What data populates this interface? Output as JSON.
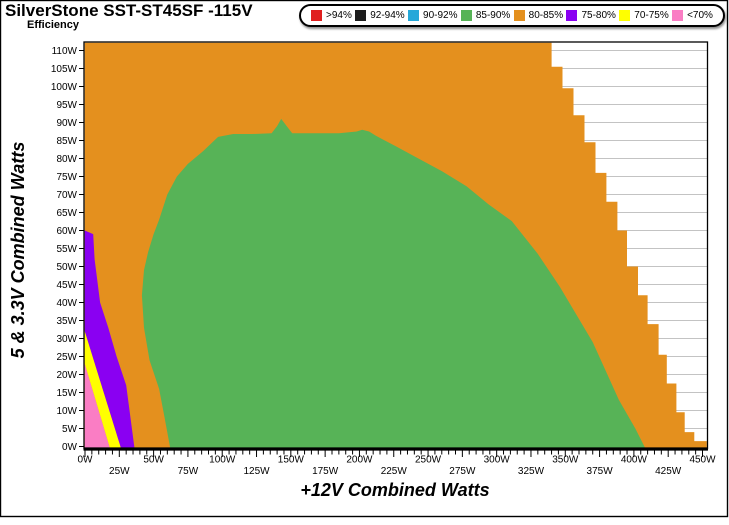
{
  "chart_data": {
    "type": "filled_contour",
    "title": "SilverStone SST-ST45SF -115V",
    "legend_title": "Efficiency",
    "xlabel": "+12V Combined Watts",
    "ylabel": "5 & 3.3V Combined Watts",
    "xlim": [
      0,
      450
    ],
    "ylim": [
      0,
      110
    ],
    "x_major_tick_step": 25,
    "x_minor_tick_step": 5,
    "y_tick_step": 5,
    "x_tick_labels": [
      "0W",
      "25W",
      "50W",
      "75W",
      "100W",
      "125W",
      "150W",
      "175W",
      "200W",
      "225W",
      "250W",
      "275W",
      "300W",
      "325W",
      "350W",
      "375W",
      "400W",
      "425W",
      "450W"
    ],
    "y_tick_labels": [
      "0W",
      "5W",
      "10W",
      "15W",
      "20W",
      "25W",
      "30W",
      "35W",
      "40W",
      "45W",
      "50W",
      "55W",
      "60W",
      "65W",
      "70W",
      "75W",
      "80W",
      "85W",
      "90W",
      "95W",
      "100W",
      "105W",
      "110W"
    ],
    "grid": {
      "horizontal_step": 5,
      "color": "#c3c3c3"
    },
    "legend": {
      "position": "top-right",
      "items": [
        {
          "label": ">94%",
          "color": "#e01f1f"
        },
        {
          "label": "92-94%",
          "color": "#1c1c1c"
        },
        {
          "label": "90-92%",
          "color": "#25a8d9"
        },
        {
          "label": "85-90%",
          "color": "#57b357"
        },
        {
          "label": "80-85%",
          "color": "#e4901e"
        },
        {
          "label": "75-80%",
          "color": "#8a00f2"
        },
        {
          "label": "70-75%",
          "color": "#ffff00"
        },
        {
          "label": "<70%",
          "color": "#fa7dc4"
        }
      ]
    },
    "regions": [
      {
        "band": "80-85%",
        "color": "#e4901e",
        "points": [
          [
            0,
            0
          ],
          [
            0,
            110
          ],
          [
            340,
            110
          ],
          [
            340,
            105.5
          ],
          [
            348,
            105.5
          ],
          [
            348,
            99.5
          ],
          [
            356,
            99.5
          ],
          [
            356,
            92
          ],
          [
            364,
            92
          ],
          [
            364,
            84.5
          ],
          [
            372,
            84.5
          ],
          [
            372,
            76
          ],
          [
            380,
            76
          ],
          [
            380,
            68
          ],
          [
            388,
            68
          ],
          [
            388,
            60
          ],
          [
            395,
            60
          ],
          [
            395,
            50
          ],
          [
            403,
            50
          ],
          [
            403,
            42
          ],
          [
            410,
            42
          ],
          [
            410,
            34
          ],
          [
            418,
            34
          ],
          [
            418,
            25.5
          ],
          [
            424,
            25.5
          ],
          [
            424,
            17.5
          ],
          [
            431,
            17.5
          ],
          [
            431,
            9.5
          ],
          [
            437,
            9.5
          ],
          [
            437,
            4
          ],
          [
            444,
            4
          ],
          [
            444,
            1.5
          ],
          [
            450,
            1.5
          ],
          [
            450,
            0
          ]
        ]
      },
      {
        "band": "75-80%",
        "color": "#8a00f2",
        "points": [
          [
            0,
            32
          ],
          [
            0,
            60
          ],
          [
            6,
            59
          ],
          [
            7,
            52
          ],
          [
            11,
            40
          ],
          [
            17,
            33
          ],
          [
            23,
            25
          ],
          [
            30,
            17
          ],
          [
            36,
            0
          ],
          [
            26,
            0
          ]
        ]
      },
      {
        "band": "70-75%",
        "color": "#ffff00",
        "points": [
          [
            0,
            23
          ],
          [
            0,
            32
          ],
          [
            26,
            0
          ],
          [
            18,
            0
          ]
        ]
      },
      {
        "band": "<70%",
        "color": "#fa7dc4",
        "points": [
          [
            0,
            0
          ],
          [
            0,
            23
          ],
          [
            18,
            0
          ]
        ]
      },
      {
        "band": "85-90%",
        "color": "#57b357",
        "points": [
          [
            62,
            0
          ],
          [
            58,
            8
          ],
          [
            54,
            16
          ],
          [
            47,
            24
          ],
          [
            43,
            33
          ],
          [
            41.5,
            42
          ],
          [
            43,
            49
          ],
          [
            46,
            54
          ],
          [
            50,
            59
          ],
          [
            54,
            63
          ],
          [
            60,
            70
          ],
          [
            67,
            75
          ],
          [
            75,
            78.5
          ],
          [
            86,
            82
          ],
          [
            97,
            86
          ],
          [
            108,
            86.8
          ],
          [
            122,
            86.8
          ],
          [
            136,
            87
          ],
          [
            140,
            89
          ],
          [
            143,
            91
          ],
          [
            147,
            89
          ],
          [
            151,
            87
          ],
          [
            168,
            87
          ],
          [
            185,
            87
          ],
          [
            198,
            87.5
          ],
          [
            202,
            88
          ],
          [
            207,
            87.5
          ],
          [
            212,
            86.3
          ],
          [
            226,
            83.5
          ],
          [
            243,
            80
          ],
          [
            260,
            76.5
          ],
          [
            278,
            72.3
          ],
          [
            294,
            67.3
          ],
          [
            311,
            62.6
          ],
          [
            330,
            53.5
          ],
          [
            346,
            44.4
          ],
          [
            370,
            29
          ],
          [
            389,
            13
          ],
          [
            401,
            5
          ],
          [
            408,
            0
          ]
        ]
      }
    ]
  }
}
